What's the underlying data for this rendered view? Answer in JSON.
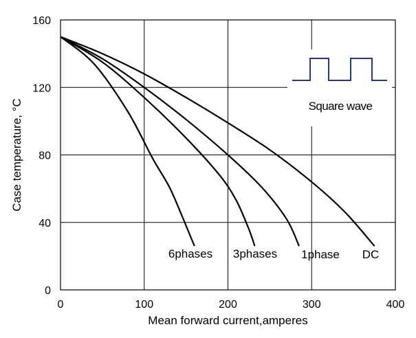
{
  "chart_data": {
    "type": "line",
    "title": "",
    "xlabel": "Mean forward current,amperes",
    "ylabel": "Case temperature, °C",
    "xlim": [
      0,
      400
    ],
    "ylim": [
      0,
      160
    ],
    "x_ticks": [
      0,
      100,
      200,
      300,
      400
    ],
    "y_ticks": [
      0,
      40,
      80,
      120,
      160
    ],
    "x_tick_labels": [
      "0",
      "100",
      "200",
      "300",
      "400"
    ],
    "y_tick_labels": [
      "0",
      "40",
      "80",
      "120",
      "160"
    ],
    "grid": true,
    "legend": "none",
    "series": [
      {
        "name": "DC",
        "line_color": "#000000",
        "points": [
          [
            0,
            150
          ],
          [
            50,
            140
          ],
          [
            100,
            128
          ],
          [
            150,
            114
          ],
          [
            200,
            99
          ],
          [
            250,
            83
          ],
          [
            300,
            64
          ],
          [
            340,
            46
          ],
          [
            375,
            26
          ]
        ]
      },
      {
        "name": "1phase",
        "line_color": "#000000",
        "points": [
          [
            0,
            150
          ],
          [
            50,
            137
          ],
          [
            100,
            120
          ],
          [
            150,
            101
          ],
          [
            200,
            80
          ],
          [
            240,
            61
          ],
          [
            270,
            42
          ],
          [
            285,
            26
          ]
        ]
      },
      {
        "name": "3phases",
        "line_color": "#000000",
        "points": [
          [
            0,
            150
          ],
          [
            50,
            135
          ],
          [
            100,
            114
          ],
          [
            150,
            90
          ],
          [
            190,
            68
          ],
          [
            210,
            53
          ],
          [
            225,
            36
          ],
          [
            232,
            26
          ]
        ]
      },
      {
        "name": "6phases",
        "line_color": "#000000",
        "points": [
          [
            0,
            150
          ],
          [
            40,
            134
          ],
          [
            80,
            106
          ],
          [
            110,
            78
          ],
          [
            130,
            61
          ],
          [
            145,
            44
          ],
          [
            155,
            32
          ],
          [
            160,
            26
          ]
        ]
      }
    ],
    "series_labels": [
      "6phases",
      "3phases",
      "1phase",
      "DC"
    ],
    "inset": {
      "label": "Square wave",
      "waveform_color": "#1f3a93"
    },
    "colors": {
      "background": "#ffffff",
      "plot_area": "#ffffff",
      "grid": "#000000",
      "text": "#000000"
    }
  }
}
